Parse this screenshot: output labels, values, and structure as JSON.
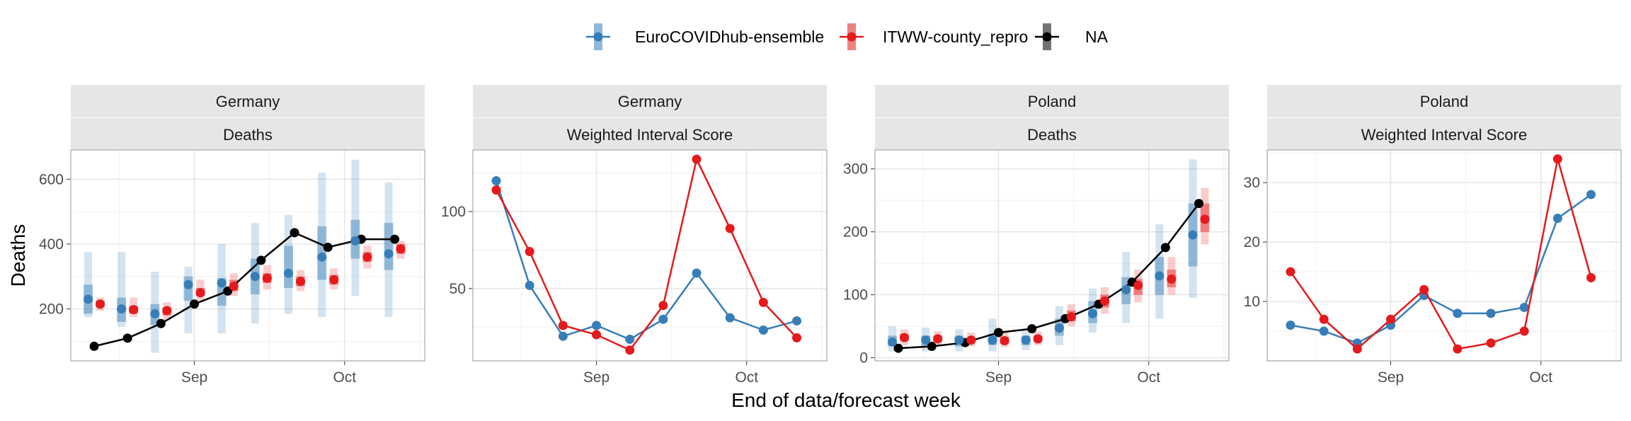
{
  "chart_data": {
    "type": "line",
    "xlabel": "End of data/forecast week",
    "ylabel": "Deaths",
    "legend": {
      "position": "top",
      "entries": [
        {
          "name": "EuroCOVIDhub-ensemble",
          "color": "#377EB8"
        },
        {
          "name": "ITWW-county_repro",
          "color": "#E41A1C"
        },
        {
          "name": "NA",
          "color": "#000000"
        }
      ]
    },
    "x_ticks": [
      "Sep",
      "Oct"
    ],
    "x_tick_positions": [
      3.0,
      7.5
    ],
    "x_range": [
      -0.7,
      9.9
    ],
    "panels": [
      {
        "strip": [
          "Germany",
          "Deaths"
        ],
        "ylim": [
          40,
          690
        ],
        "yticks": [
          200,
          400,
          600
        ],
        "truth": [
          85,
          110,
          155,
          215,
          255,
          350,
          435,
          390,
          415,
          415
        ],
        "forecasts": [
          {
            "series": "EuroCOVIDhub-ensemble",
            "median": [
              230,
              200,
              185,
              275,
              280,
              300,
              310,
              360,
              410,
              370
            ],
            "q50": [
              [
                185,
                275
              ],
              [
                160,
                235
              ],
              [
                150,
                215
              ],
              [
                225,
                300
              ],
              [
                210,
                295
              ],
              [
                245,
                355
              ],
              [
                265,
                395
              ],
              [
                290,
                455
              ],
              [
                355,
                475
              ],
              [
                320,
                465
              ]
            ],
            "q90": [
              [
                175,
                375
              ],
              [
                145,
                375
              ],
              [
                65,
                315
              ],
              [
                125,
                330
              ],
              [
                125,
                400
              ],
              [
                155,
                465
              ],
              [
                185,
                490
              ],
              [
                175,
                620
              ],
              [
                240,
                660
              ],
              [
                175,
                590
              ]
            ]
          },
          {
            "series": "ITWW-county_repro",
            "median": [
              215,
              198,
              195,
              250,
              270,
              295,
              285,
              290,
              360,
              385
            ],
            "q50": [
              [
                205,
                225
              ],
              [
                185,
                210
              ],
              [
                180,
                205
              ],
              [
                240,
                265
              ],
              [
                255,
                290
              ],
              [
                280,
                310
              ],
              [
                270,
                300
              ],
              [
                275,
                305
              ],
              [
                345,
                375
              ],
              [
                370,
                400
              ]
            ],
            "q90": [
              [
                195,
                235
              ],
              [
                175,
                235
              ],
              [
                165,
                220
              ],
              [
                225,
                290
              ],
              [
                240,
                310
              ],
              [
                260,
                335
              ],
              [
                255,
                320
              ],
              [
                260,
                325
              ],
              [
                325,
                395
              ],
              [
                355,
                410
              ]
            ]
          }
        ]
      },
      {
        "strip": [
          "Germany",
          "Weighted Interval Score"
        ],
        "ylim": [
          3,
          140
        ],
        "yticks": [
          50,
          100
        ],
        "lines": [
          {
            "series": "EuroCOVIDhub-ensemble",
            "values": [
              120,
              52,
              19,
              26,
              17,
              30,
              60,
              31,
              23,
              29
            ]
          },
          {
            "series": "ITWW-county_repro",
            "values": [
              114,
              74,
              26,
              20,
              10,
              39,
              134,
              89,
              41,
              18
            ]
          }
        ]
      },
      {
        "strip": [
          "Poland",
          "Deaths"
        ],
        "ylim": [
          -5,
          330
        ],
        "yticks": [
          0,
          100,
          200,
          300
        ],
        "truth": [
          15,
          18,
          24,
          40,
          46,
          62,
          85,
          120,
          175,
          245
        ],
        "forecasts": [
          {
            "series": "EuroCOVIDhub-ensemble",
            "median": [
              25,
              28,
              28,
              28,
              28,
              47,
              70,
              108,
              130,
              195
            ],
            "q50": [
              [
                18,
                35
              ],
              [
                18,
                35
              ],
              [
                18,
                35
              ],
              [
                20,
                38
              ],
              [
                20,
                35
              ],
              [
                35,
                62
              ],
              [
                55,
                90
              ],
              [
                85,
                128
              ],
              [
                100,
                160
              ],
              [
                145,
                245
              ]
            ],
            "q90": [
              [
                10,
                50
              ],
              [
                10,
                48
              ],
              [
                10,
                45
              ],
              [
                10,
                62
              ],
              [
                12,
                45
              ],
              [
                20,
                82
              ],
              [
                40,
                110
              ],
              [
                55,
                168
              ],
              [
                62,
                212
              ],
              [
                95,
                315
              ]
            ]
          },
          {
            "series": "ITWW-county_repro",
            "median": [
              32,
              30,
              28,
              27,
              30,
              65,
              90,
              115,
              125,
              220
            ],
            "q50": [
              [
                27,
                38
              ],
              [
                25,
                35
              ],
              [
                23,
                33
              ],
              [
                22,
                33
              ],
              [
                25,
                35
              ],
              [
                58,
                75
              ],
              [
                80,
                100
              ],
              [
                100,
                125
              ],
              [
                112,
                140
              ],
              [
                200,
                245
              ]
            ],
            "q90": [
              [
                20,
                45
              ],
              [
                20,
                42
              ],
              [
                18,
                40
              ],
              [
                17,
                40
              ],
              [
                20,
                42
              ],
              [
                50,
                85
              ],
              [
                70,
                112
              ],
              [
                88,
                140
              ],
              [
                100,
                160
              ],
              [
                180,
                270
              ]
            ]
          }
        ]
      },
      {
        "strip": [
          "Poland",
          "Weighted Interval Score"
        ],
        "ylim": [
          0,
          35.5
        ],
        "yticks": [
          10,
          20,
          30
        ],
        "lines": [
          {
            "series": "EuroCOVIDhub-ensemble",
            "values": [
              6,
              5,
              3,
              6,
              11,
              8,
              8,
              9,
              24,
              28
            ]
          },
          {
            "series": "ITWW-county_repro",
            "values": [
              15,
              7,
              2,
              7,
              12,
              2,
              3,
              5,
              34,
              14
            ]
          }
        ]
      }
    ]
  }
}
